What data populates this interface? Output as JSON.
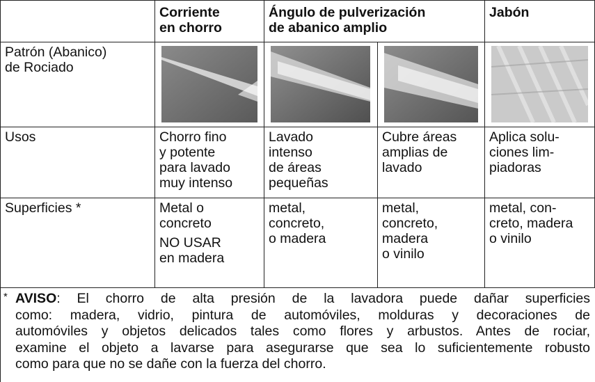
{
  "table": {
    "columns": [
      {
        "lines": [
          "Corriente",
          "en chorro"
        ]
      },
      {
        "lines": [
          "Ángulo de pulverización",
          "de abanico amplio"
        ]
      },
      {
        "lines": [
          "Jabón"
        ]
      }
    ],
    "rows": [
      {
        "label": [
          "Patrón (Abanico)",
          "de Rociado"
        ]
      },
      {
        "label": [
          "Usos"
        ],
        "cells": [
          [
            [
              "Chorro fino",
              "y potente",
              "para lavado",
              "muy intenso"
            ]
          ],
          [
            [
              "Lavado",
              "intenso",
              "de áreas",
              "pequeñas"
            ]
          ],
          [
            [
              "Cubre áreas",
              "amplias de",
              "lavado"
            ]
          ],
          [
            [
              "Aplica solu-",
              "ciones lim-",
              "piadoras"
            ]
          ]
        ]
      },
      {
        "label": [
          "Superficies *"
        ],
        "cells": [
          [
            [
              "Metal o",
              "concreto"
            ],
            [
              "NO USAR",
              "en madera"
            ]
          ],
          [
            [
              "metal,",
              "concreto,",
              "o madera"
            ]
          ],
          [
            [
              "metal,",
              "concreto,",
              "madera",
              "o vinilo"
            ]
          ],
          [
            [
              "metal, con-",
              "creto, madera",
              "o vinilo"
            ]
          ]
        ]
      }
    ]
  },
  "notice": {
    "marker": "*",
    "label": "AVISO",
    "lines": [
      ": El chorro de alta presión de la lavadora puede dañar superficies",
      "como: madera, vidrio, pintura de automóviles, molduras y decoraciones de",
      "automóviles y objetos delicados tales como flores y arbustos.  Antes de rociar,",
      "examine el objeto a lavarse para asegurarse que sea lo suficientemente robusto",
      "como para que no se dañe con la fuerza del chorro."
    ]
  }
}
